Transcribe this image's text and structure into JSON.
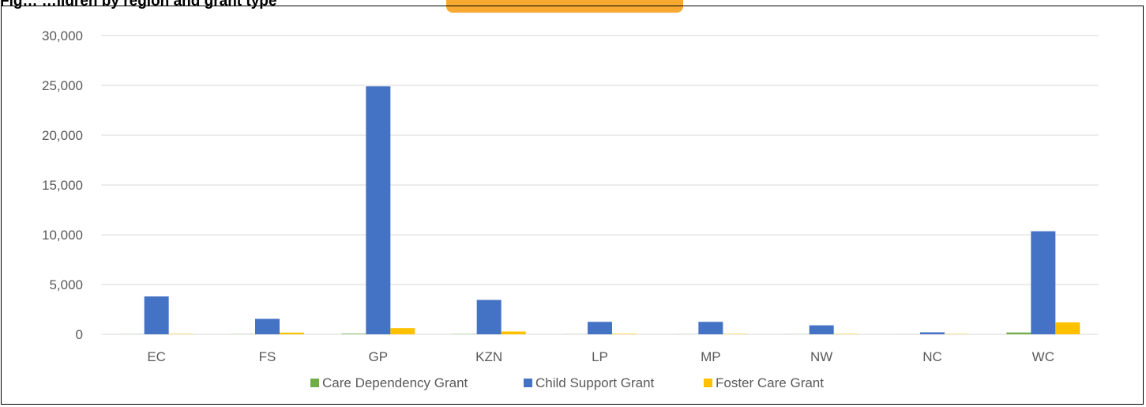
{
  "partial_title": "Fig… …ildren by region and grant type",
  "chart_data": {
    "type": "bar",
    "categories": [
      "EC",
      "FS",
      "GP",
      "KZN",
      "LP",
      "MP",
      "NW",
      "NC",
      "WC"
    ],
    "series": [
      {
        "name": "Care Dependency Grant",
        "color": "#70ad47",
        "values": [
          10,
          15,
          60,
          25,
          10,
          10,
          10,
          5,
          180
        ]
      },
      {
        "name": "Child Support Grant",
        "color": "#4472c4",
        "values": [
          3800,
          1550,
          24900,
          3450,
          1250,
          1250,
          900,
          200,
          10350
        ]
      },
      {
        "name": "Foster Care Grant",
        "color": "#ffc000",
        "values": [
          40,
          170,
          620,
          280,
          50,
          40,
          40,
          30,
          1200
        ]
      }
    ],
    "ylim": [
      0,
      30000
    ],
    "yticks": [
      "0",
      "5,000",
      "10,000",
      "15,000",
      "20,000",
      "25,000",
      "30,000"
    ],
    "ytick_values": [
      0,
      5000,
      10000,
      15000,
      20000,
      25000,
      30000
    ],
    "grid": true,
    "legend_position": "bottom"
  }
}
